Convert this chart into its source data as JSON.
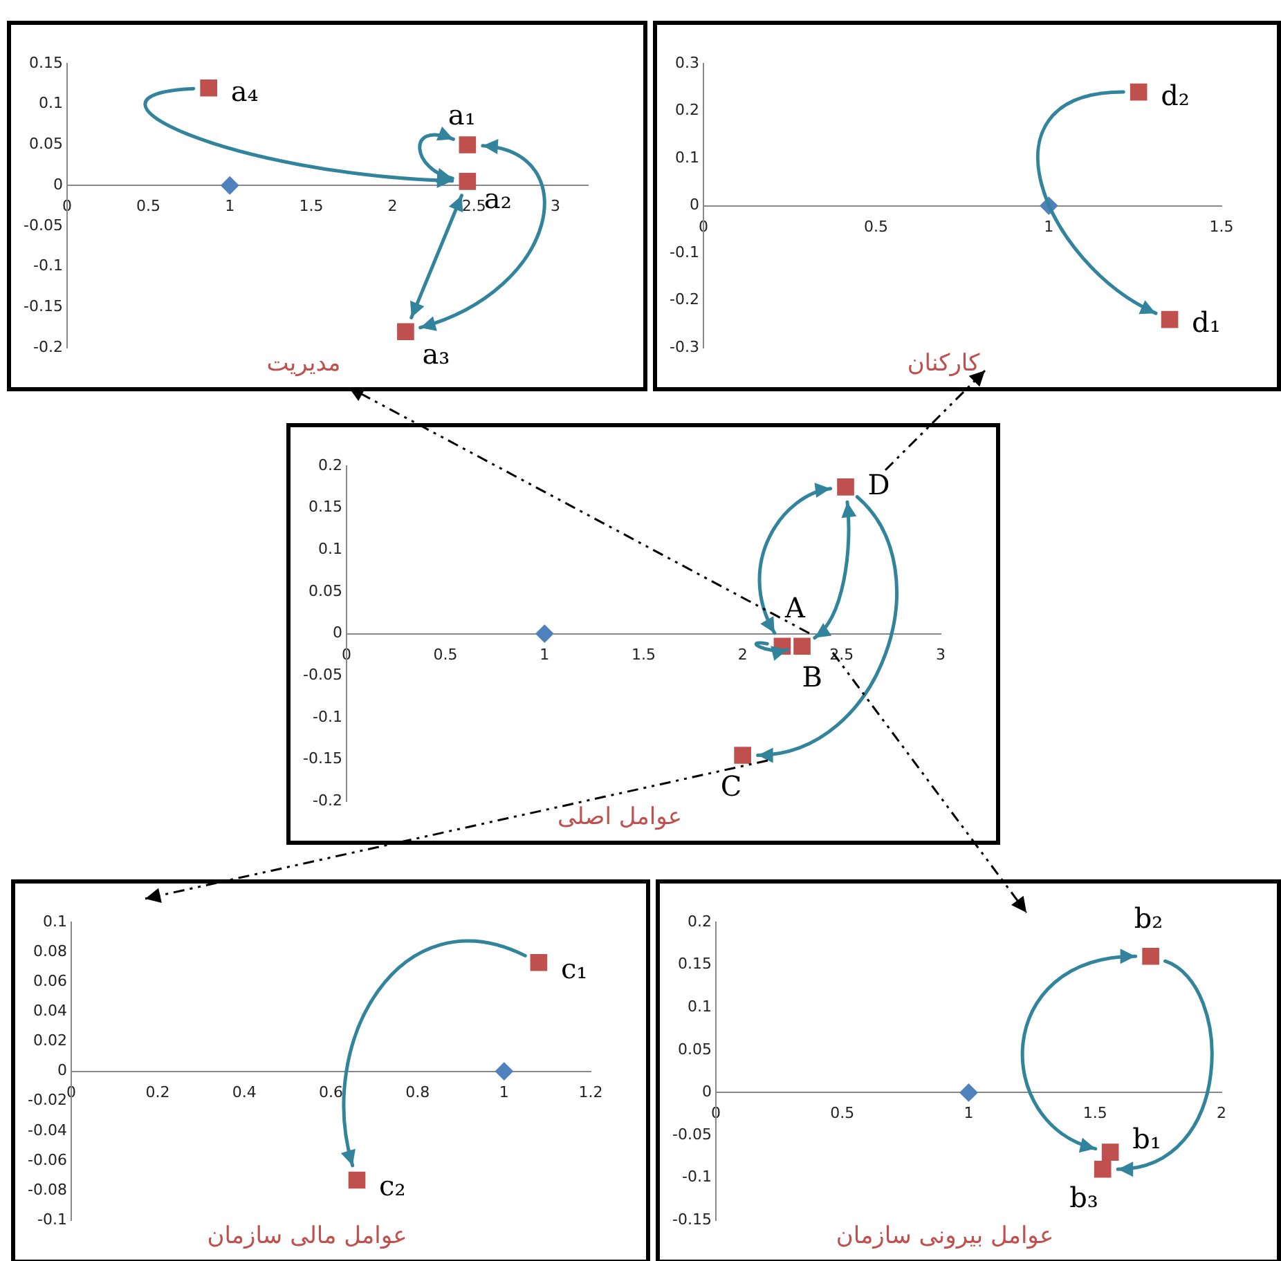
{
  "chart_data": [
    {
      "type": "scatter",
      "title": "مدیریت",
      "xlim": [
        0,
        3.2
      ],
      "xticks": [
        0,
        0.5,
        1,
        1.5,
        2,
        2.5,
        3
      ],
      "ylim": [
        -0.2,
        0.15
      ],
      "yticks": [
        -0.2,
        -0.15,
        -0.1,
        -0.05,
        0,
        0.05,
        0.1,
        0.15
      ],
      "grid": false,
      "series": [
        {
          "color": "#4f81bd",
          "marker": "diamond",
          "x": [
            1
          ],
          "values": [
            0
          ]
        },
        {
          "name": "a₁",
          "color": "#c0504d",
          "marker": "square",
          "x": [
            2.46
          ],
          "values": [
            0.05
          ]
        },
        {
          "name": "a₂",
          "color": "#c0504d",
          "marker": "square",
          "x": [
            2.46
          ],
          "values": [
            0.005
          ]
        },
        {
          "name": "a₃",
          "color": "#c0504d",
          "marker": "square",
          "x": [
            2.08
          ],
          "values": [
            -0.18
          ]
        },
        {
          "name": "a₄",
          "color": "#c0504d",
          "marker": "square",
          "x": [
            0.87
          ],
          "values": [
            0.12
          ]
        }
      ]
    },
    {
      "type": "scatter",
      "title": "کارکنان",
      "xlim": [
        0,
        1.5
      ],
      "xticks": [
        0,
        0.5,
        1,
        1.5
      ],
      "ylim": [
        -0.3,
        0.3
      ],
      "yticks": [
        -0.3,
        -0.2,
        -0.1,
        0,
        0.1,
        0.2,
        0.3
      ],
      "grid": false,
      "series": [
        {
          "color": "#4f81bd",
          "marker": "diamond",
          "x": [
            1
          ],
          "values": [
            0
          ]
        },
        {
          "name": "d₁",
          "color": "#c0504d",
          "marker": "square",
          "x": [
            1.35
          ],
          "values": [
            -0.24
          ]
        },
        {
          "name": "d₂",
          "color": "#c0504d",
          "marker": "square",
          "x": [
            1.26
          ],
          "values": [
            0.24
          ]
        }
      ]
    },
    {
      "type": "scatter",
      "title": "عوامل اصلی",
      "xlim": [
        0,
        3
      ],
      "xticks": [
        0,
        0.5,
        1,
        1.5,
        2,
        2.5,
        3
      ],
      "ylim": [
        -0.2,
        0.2
      ],
      "yticks": [
        -0.2,
        -0.15,
        -0.1,
        -0.05,
        0,
        0.05,
        0.1,
        0.15,
        0.2
      ],
      "grid": false,
      "series": [
        {
          "color": "#4f81bd",
          "marker": "diamond",
          "x": [
            1
          ],
          "values": [
            0
          ]
        },
        {
          "name": "A",
          "color": "#c0504d",
          "marker": "square",
          "x": [
            2.2
          ],
          "values": [
            -0.015
          ]
        },
        {
          "name": "B",
          "color": "#c0504d",
          "marker": "square",
          "x": [
            2.3
          ],
          "values": [
            -0.015
          ]
        },
        {
          "name": "C",
          "color": "#c0504d",
          "marker": "square",
          "x": [
            2.0
          ],
          "values": [
            -0.145
          ]
        },
        {
          "name": "D",
          "color": "#c0504d",
          "marker": "square",
          "x": [
            2.52
          ],
          "values": [
            0.175
          ]
        }
      ]
    },
    {
      "type": "scatter",
      "title": "عوامل مالی سازمان",
      "xlim": [
        0,
        1.2
      ],
      "xticks": [
        0,
        0.2,
        0.4,
        0.6,
        0.8,
        1,
        1.2
      ],
      "ylim": [
        -0.1,
        0.1
      ],
      "yticks": [
        -0.1,
        -0.08,
        -0.06,
        -0.04,
        -0.02,
        0,
        0.02,
        0.04,
        0.06,
        0.08,
        0.1
      ],
      "grid": false,
      "series": [
        {
          "color": "#4f81bd",
          "marker": "diamond",
          "x": [
            1
          ],
          "values": [
            0
          ]
        },
        {
          "name": "c₁",
          "color": "#c0504d",
          "marker": "square",
          "x": [
            1.08
          ],
          "values": [
            0.073
          ]
        },
        {
          "name": "c₂",
          "color": "#c0504d",
          "marker": "square",
          "x": [
            0.66
          ],
          "values": [
            -0.073
          ]
        }
      ]
    },
    {
      "type": "scatter",
      "title": "عوامل بیرونی سازمان",
      "xlim": [
        0,
        2
      ],
      "xticks": [
        0,
        0.5,
        1,
        1.5,
        2
      ],
      "ylim": [
        -0.15,
        0.2
      ],
      "yticks": [
        -0.15,
        -0.1,
        -0.05,
        0,
        0.05,
        0.1,
        0.15,
        0.2
      ],
      "grid": false,
      "series": [
        {
          "color": "#4f81bd",
          "marker": "diamond",
          "x": [
            1
          ],
          "values": [
            0
          ]
        },
        {
          "name": "b₁",
          "color": "#c0504d",
          "marker": "square",
          "x": [
            1.56
          ],
          "values": [
            -0.07
          ]
        },
        {
          "name": "b₂",
          "color": "#c0504d",
          "marker": "square",
          "x": [
            1.72
          ],
          "values": [
            0.16
          ]
        },
        {
          "name": "b₃",
          "color": "#c0504d",
          "marker": "square",
          "x": [
            1.53
          ],
          "values": [
            -0.09
          ]
        }
      ]
    }
  ]
}
